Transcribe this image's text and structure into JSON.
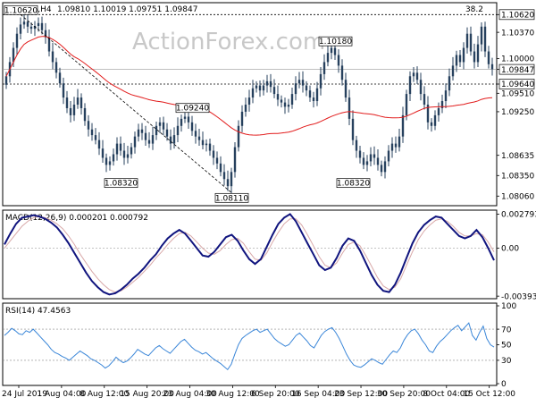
{
  "header": {
    "symbol": "EURCHF,H4",
    "ohlc": "1.09810 1.10019 1.09751 1.09847",
    "top_right_value": "38.2"
  },
  "watermark": "ActionForex.com",
  "colors": {
    "candle": "#27415e",
    "ma_line": "#e21c1c",
    "macd_line": "#10147e",
    "signal_line": "#d8a8a8",
    "rsi_line": "#3a86d8",
    "dashed_line": "#707070",
    "axis_box": "#000000"
  },
  "chart_data": [
    {
      "type": "candlestick",
      "title": "EURCHF,H4",
      "ylim": [
        1.0795,
        1.1075
      ],
      "y_tick_labels": [
        "1.10620",
        "1.10370",
        "1.10000",
        "1.09847",
        "1.09640",
        "1.09510",
        "1.09250",
        "1.08635",
        "1.08350",
        "1.08060"
      ],
      "current_price": 1.09847,
      "horizontal_levels": [
        1.1062,
        1.0964
      ],
      "price_labels": [
        {
          "text": "1.10620",
          "x_index": 4,
          "value": 1.1062
        },
        {
          "text": "1.10180",
          "x_index": 92,
          "value": 1.1018
        },
        {
          "text": "1.09240",
          "x_index": 52,
          "value": 1.0924
        },
        {
          "text": "1.08320",
          "x_index": 32,
          "value": 1.0832
        },
        {
          "text": "1.08110",
          "x_index": 63,
          "value": 1.0811
        },
        {
          "text": "1.08320",
          "x_index": 97,
          "value": 1.0832
        }
      ],
      "trendline": {
        "from": [
          4,
          1.1062
        ],
        "to": [
          63,
          1.0811
        ]
      },
      "x_tick_labels": [
        "24 Jul 2019",
        "1 Aug 04:00",
        "8 Aug 12:00",
        "15 Aug 20:00",
        "23 Aug 04:00",
        "30 Aug 12:00",
        "6 Sep 20:00",
        "16 Sep 04:00",
        "23 Sep 12:00",
        "30 Sep 20:00",
        "8 Oct 04:00",
        "15 Oct 12:00"
      ],
      "closes": [
        1.0975,
        1.0995,
        1.1015,
        1.1035,
        1.1048,
        1.1052,
        1.1045,
        1.1042,
        1.1046,
        1.105,
        1.104,
        1.103,
        1.101,
        1.0995,
        1.098,
        1.0965,
        1.0945,
        1.093,
        1.092,
        1.0935,
        1.0945,
        1.093,
        1.0912,
        1.09,
        1.0892,
        1.0885,
        1.0873,
        1.086,
        1.085,
        1.0855,
        1.0865,
        1.088,
        1.087,
        1.086,
        1.0865,
        1.0875,
        1.089,
        1.09,
        1.0895,
        1.0885,
        1.088,
        1.0892,
        1.0905,
        1.091,
        1.09,
        1.089,
        1.088,
        1.0892,
        1.0905,
        1.0915,
        1.0918,
        1.091,
        1.0898,
        1.089,
        1.0885,
        1.0878,
        1.088,
        1.087,
        1.086,
        1.0852,
        1.084,
        1.083,
        1.082,
        1.084,
        1.0875,
        1.0905,
        1.0925,
        1.0935,
        1.0945,
        1.0958,
        1.0962,
        1.0955,
        1.0962,
        1.0968,
        1.096,
        1.095,
        1.0942,
        1.0938,
        1.0932,
        1.0935,
        1.095,
        1.0965,
        1.097,
        1.0962,
        1.0955,
        1.0945,
        1.094,
        1.0958,
        1.0978,
        1.0995,
        1.1008,
        1.1015,
        1.1005,
        1.099,
        1.097,
        1.0945,
        1.0915,
        1.0885,
        1.087,
        1.086,
        1.085,
        1.0855,
        1.0865,
        1.086,
        1.085,
        1.084,
        1.0855,
        1.087,
        1.088,
        1.0875,
        1.089,
        1.092,
        1.095,
        1.0975,
        1.098,
        1.097,
        1.095,
        1.0935,
        1.091,
        1.0905,
        1.092,
        1.093,
        1.094,
        1.0955,
        1.0975,
        1.099,
        1.1005,
        1.0995,
        1.1015,
        1.1035,
        1.101,
        1.0995,
        1.102,
        1.1045,
        1.101,
        1.0992,
        1.0985
      ],
      "ma_period": 55
    },
    {
      "type": "line",
      "title": "MACD(12,26,9) 0.000201 0.000792",
      "y_tick_labels": [
        "0.002793",
        "0.00",
        "-0.003938"
      ],
      "ylim": [
        -0.004,
        0.0029
      ],
      "series": [
        {
          "name": "MACD",
          "values": [
            0.0003,
            0.0012,
            0.002,
            0.0025,
            0.0026,
            0.0027,
            0.0026,
            0.0024,
            0.0021,
            0.0017,
            0.0011,
            0.0004,
            -0.0004,
            -0.0012,
            -0.002,
            -0.0027,
            -0.0032,
            -0.0036,
            -0.0038,
            -0.0037,
            -0.0034,
            -0.003,
            -0.0025,
            -0.0021,
            -0.0016,
            -0.001,
            -0.0005,
            0.0002,
            0.0008,
            0.0012,
            0.0015,
            0.0012,
            0.0006,
            0.0,
            -0.0006,
            -0.0007,
            -0.0003,
            0.0003,
            0.0009,
            0.0011,
            0.0006,
            -0.0002,
            -0.0009,
            -0.0013,
            -0.0009,
            0.0001,
            0.0011,
            0.002,
            0.0025,
            0.0028,
            0.0022,
            0.0013,
            0.0004,
            -0.0005,
            -0.0014,
            -0.0018,
            -0.0016,
            -0.0008,
            0.0002,
            0.0008,
            0.0006,
            -0.0002,
            -0.0012,
            -0.0022,
            -0.003,
            -0.0035,
            -0.0036,
            -0.003,
            -0.002,
            -0.0008,
            0.0004,
            0.0013,
            0.0019,
            0.0023,
            0.0026,
            0.0025,
            0.002,
            0.0015,
            0.001,
            0.0008,
            0.001,
            0.0015,
            0.0009,
            0.0,
            -0.001
          ]
        },
        {
          "name": "Signal",
          "values": [
            0.0,
            0.0006,
            0.0012,
            0.0018,
            0.0022,
            0.0025,
            0.0026,
            0.0025,
            0.0023,
            0.002,
            0.0016,
            0.001,
            0.0003,
            -0.0005,
            -0.0012,
            -0.0019,
            -0.0025,
            -0.003,
            -0.0034,
            -0.0036,
            -0.0035,
            -0.0032,
            -0.0028,
            -0.0024,
            -0.0019,
            -0.0014,
            -0.0008,
            -0.0003,
            0.0003,
            0.0008,
            0.0012,
            0.0013,
            0.001,
            0.0005,
            0.0,
            -0.0004,
            -0.0005,
            -0.0002,
            0.0003,
            0.0007,
            0.0008,
            0.0004,
            -0.0003,
            -0.0009,
            -0.001,
            -0.0004,
            0.0005,
            0.0013,
            0.002,
            0.0024,
            0.0024,
            0.0019,
            0.0011,
            0.0002,
            -0.0007,
            -0.0014,
            -0.0016,
            -0.0012,
            -0.0004,
            0.0003,
            0.0005,
            0.0002,
            -0.0006,
            -0.0015,
            -0.0024,
            -0.0031,
            -0.0034,
            -0.0032,
            -0.0025,
            -0.0014,
            -0.0003,
            0.0007,
            0.0014,
            0.0019,
            0.0023,
            0.0024,
            0.0022,
            0.0018,
            0.0013,
            0.001,
            0.001,
            0.0012,
            0.0011,
            0.0005,
            -0.0003
          ]
        }
      ]
    },
    {
      "type": "line",
      "title": "RSI(14) 47.4563",
      "ylim": [
        0,
        100
      ],
      "y_tick_labels": [
        "100",
        "70",
        "50",
        "30",
        "0"
      ],
      "reference_levels": [
        70,
        30
      ],
      "series": [
        {
          "name": "RSI",
          "values": [
            62,
            66,
            71,
            68,
            64,
            63,
            68,
            66,
            70,
            65,
            60,
            55,
            50,
            44,
            40,
            38,
            35,
            33,
            30,
            34,
            38,
            42,
            39,
            36,
            32,
            30,
            27,
            24,
            20,
            23,
            28,
            34,
            30,
            27,
            29,
            33,
            38,
            44,
            41,
            38,
            36,
            41,
            46,
            49,
            45,
            42,
            39,
            44,
            49,
            54,
            57,
            52,
            47,
            43,
            41,
            38,
            40,
            36,
            32,
            29,
            26,
            22,
            18,
            25,
            38,
            50,
            58,
            62,
            65,
            68,
            70,
            66,
            68,
            70,
            64,
            58,
            54,
            51,
            48,
            50,
            56,
            62,
            65,
            60,
            55,
            49,
            46,
            54,
            62,
            67,
            70,
            72,
            66,
            58,
            48,
            38,
            30,
            24,
            22,
            21,
            24,
            28,
            32,
            30,
            27,
            25,
            31,
            37,
            42,
            40,
            46,
            56,
            63,
            68,
            70,
            64,
            56,
            50,
            42,
            40,
            48,
            54,
            58,
            63,
            68,
            72,
            75,
            68,
            73,
            78,
            62,
            56,
            66,
            74,
            58,
            50,
            47
          ]
        }
      ]
    }
  ]
}
